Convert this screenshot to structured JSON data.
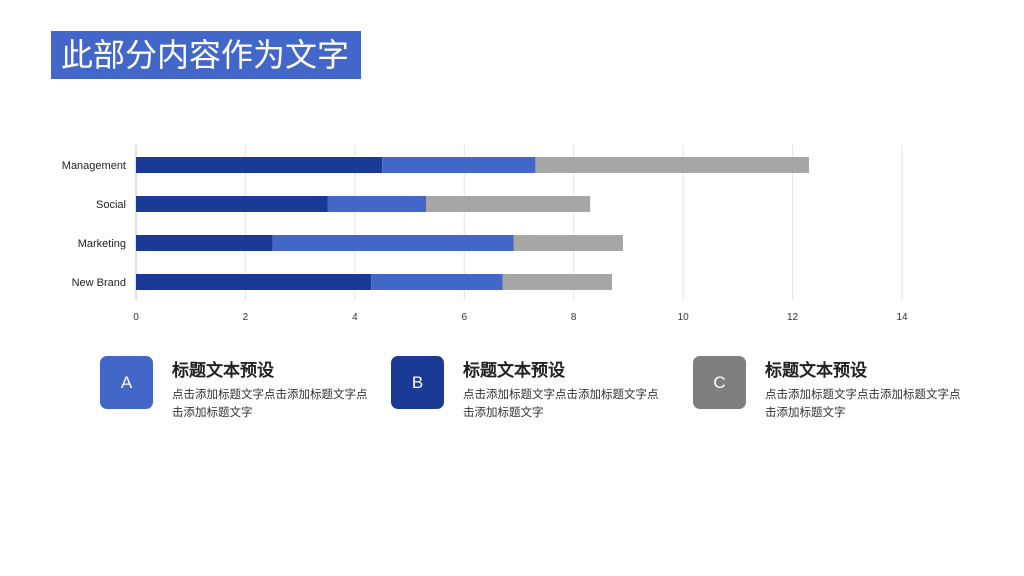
{
  "title": "此部分内容作为文字",
  "colors": {
    "title_bg": "#4366C9",
    "series": [
      "#1A3A96",
      "#4366C9",
      "#A6A6A6"
    ],
    "badges": [
      "#4366C9",
      "#1A3A96",
      "#7F7F7F"
    ]
  },
  "chart_data": {
    "type": "bar",
    "orientation": "horizontal",
    "stacked": true,
    "categories": [
      "Management",
      "Social",
      "Marketing",
      "New Brand"
    ],
    "series": [
      {
        "values": [
          4.5,
          3.5,
          2.5,
          4.3
        ]
      },
      {
        "values": [
          2.8,
          1.8,
          4.4,
          2.4
        ]
      },
      {
        "values": [
          5.0,
          3.0,
          2.0,
          2.0
        ]
      }
    ],
    "xlim": [
      0,
      14
    ],
    "xticks": [
      0,
      2,
      4,
      6,
      8,
      10,
      12,
      14
    ],
    "grid": "vertical",
    "legend": "none"
  },
  "cards": [
    {
      "badge": "A",
      "title": "标题文本预设",
      "text": "点击添加标题文字点击添加标题文字点击添加标题文字"
    },
    {
      "badge": "B",
      "title": "标题文本预设",
      "text": "点击添加标题文字点击添加标题文字点击添加标题文字"
    },
    {
      "badge": "C",
      "title": "标题文本预设",
      "text": "点击添加标题文字点击添加标题文字点击添加标题文字"
    }
  ]
}
